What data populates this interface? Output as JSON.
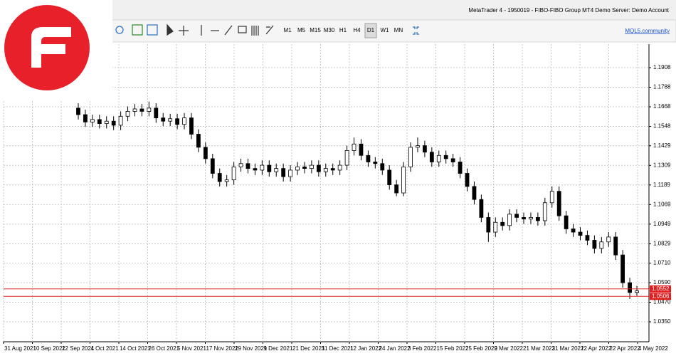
{
  "window": {
    "title": "MetaTrader 4 - 1950019 - FIBO-FIBO Group MT4 Demo Server: Demo Account",
    "timeframes": [
      "M1",
      "M5",
      "M15",
      "M30",
      "H1",
      "H4",
      "D1",
      "W1",
      "MN"
    ],
    "active_timeframe": "D1",
    "link": "MQL5.community"
  },
  "chart_data": {
    "type": "candlestick",
    "bull_color": "#ffffff",
    "bear_color": "#000000",
    "grid": true,
    "ylim": [
      1.0228,
      1.2039
    ],
    "yticks": [
      1.1908,
      1.1788,
      1.1668,
      1.1548,
      1.1429,
      1.1309,
      1.1189,
      1.1069,
      1.0949,
      1.0829,
      {
        "value": 1.071,
        "label": "1.0710"
      },
      {
        "value": 1.059,
        "label": "1.0590"
      },
      {
        "value": 1.047,
        "label": "1.0470"
      },
      {
        "value": 1.035,
        "label": "1.0350"
      }
    ],
    "date_labels": [
      "31 Aug 2021",
      "10 Sep 2021",
      "22 Sep 2021",
      "4 Oct 2021",
      "14 Oct 2021",
      "26 Oct 2021",
      "5 Nov 2021",
      "17 Nov 2021",
      "29 Nov 2021",
      "9 Dec 2021",
      "21 Dec 2021",
      "31 Dec 2021",
      "12 Jan 2022",
      "24 Jan 2022",
      "3 Feb 2022",
      "15 Feb 2022",
      "25 Feb 2022",
      "9 Mar 2022",
      "21 Mar 2022",
      "31 Mar 2022",
      "12 Apr 2022",
      "22 Apr 2022",
      "4 May 2022"
    ],
    "hlines": [
      {
        "value": 1.0552,
        "color": "#e02020"
      },
      {
        "value": 1.0506,
        "color": "#e02020"
      }
    ],
    "open": [
      1.166,
      1.162,
      1.1575,
      1.159,
      1.1565,
      1.158,
      1.1555,
      1.161,
      1.164,
      1.1655,
      1.164,
      1.166,
      1.16,
      1.158,
      1.1595,
      1.156,
      1.16,
      1.15,
      1.142,
      1.135,
      1.126,
      1.121,
      1.122,
      1.13,
      1.132,
      1.129,
      1.128,
      1.131,
      1.127,
      1.129,
      1.124,
      1.128,
      1.13,
      1.129,
      1.131,
      1.127,
      1.129,
      1.128,
      1.131,
      1.14,
      1.144,
      1.137,
      1.133,
      1.132,
      1.128,
      1.119,
      1.114,
      1.13,
      1.142,
      1.143,
      1.139,
      1.133,
      1.137,
      1.135,
      1.133,
      1.126,
      1.118,
      1.11,
      1.099,
      1.09,
      1.096,
      1.094,
      1.101,
      1.099,
      1.098,
      1.099,
      1.097,
      1.108,
      1.115,
      1.1,
      1.092,
      1.09,
      1.088,
      1.085,
      1.08,
      1.084,
      1.087,
      1.076,
      1.059,
      1.053
    ],
    "high": [
      1.169,
      1.165,
      1.162,
      1.162,
      1.161,
      1.161,
      1.164,
      1.167,
      1.1685,
      1.1685,
      1.17,
      1.169,
      1.163,
      1.1625,
      1.1625,
      1.163,
      1.163,
      1.153,
      1.145,
      1.138,
      1.129,
      1.125,
      1.133,
      1.135,
      1.135,
      1.132,
      1.134,
      1.134,
      1.132,
      1.132,
      1.131,
      1.133,
      1.133,
      1.134,
      1.134,
      1.132,
      1.132,
      1.134,
      1.143,
      1.148,
      1.147,
      1.14,
      1.136,
      1.135,
      1.131,
      1.122,
      1.133,
      1.145,
      1.148,
      1.146,
      1.142,
      1.14,
      1.14,
      1.138,
      1.136,
      1.129,
      1.121,
      1.113,
      1.102,
      1.099,
      1.099,
      1.104,
      1.104,
      1.102,
      1.102,
      1.102,
      1.111,
      1.118,
      1.118,
      1.103,
      1.095,
      1.093,
      1.091,
      1.088,
      1.087,
      1.09,
      1.09,
      1.079,
      1.062,
      1.057
    ],
    "low": [
      1.159,
      1.1545,
      1.1545,
      1.1535,
      1.1535,
      1.1525,
      1.1525,
      1.158,
      1.161,
      1.161,
      1.161,
      1.157,
      1.155,
      1.155,
      1.153,
      1.153,
      1.147,
      1.139,
      1.132,
      1.123,
      1.118,
      1.118,
      1.119,
      1.127,
      1.126,
      1.125,
      1.125,
      1.124,
      1.124,
      1.121,
      1.121,
      1.125,
      1.126,
      1.126,
      1.124,
      1.124,
      1.125,
      1.125,
      1.128,
      1.137,
      1.134,
      1.13,
      1.129,
      1.125,
      1.116,
      1.112,
      1.112,
      1.127,
      1.139,
      1.136,
      1.13,
      1.13,
      1.132,
      1.13,
      1.123,
      1.115,
      1.107,
      1.096,
      1.084,
      1.087,
      1.091,
      1.091,
      1.096,
      1.095,
      1.095,
      1.094,
      1.094,
      1.105,
      1.097,
      1.089,
      1.087,
      1.085,
      1.082,
      1.077,
      1.077,
      1.081,
      1.073,
      1.056,
      1.049,
      1.051
    ],
    "close": [
      1.162,
      1.1575,
      1.159,
      1.1565,
      1.158,
      1.1555,
      1.161,
      1.164,
      1.1655,
      1.164,
      1.166,
      1.16,
      1.158,
      1.1595,
      1.156,
      1.16,
      1.15,
      1.142,
      1.135,
      1.126,
      1.121,
      1.122,
      1.13,
      1.132,
      1.129,
      1.128,
      1.131,
      1.127,
      1.129,
      1.124,
      1.128,
      1.13,
      1.129,
      1.131,
      1.127,
      1.129,
      1.128,
      1.131,
      1.14,
      1.144,
      1.137,
      1.133,
      1.132,
      1.128,
      1.119,
      1.114,
      1.13,
      1.142,
      1.143,
      1.139,
      1.133,
      1.137,
      1.135,
      1.133,
      1.126,
      1.118,
      1.11,
      1.099,
      1.09,
      1.096,
      1.094,
      1.101,
      1.099,
      1.098,
      1.099,
      1.097,
      1.108,
      1.115,
      1.1,
      1.092,
      1.09,
      1.088,
      1.085,
      1.08,
      1.084,
      1.087,
      1.076,
      1.059,
      1.053,
      1.054
    ]
  }
}
